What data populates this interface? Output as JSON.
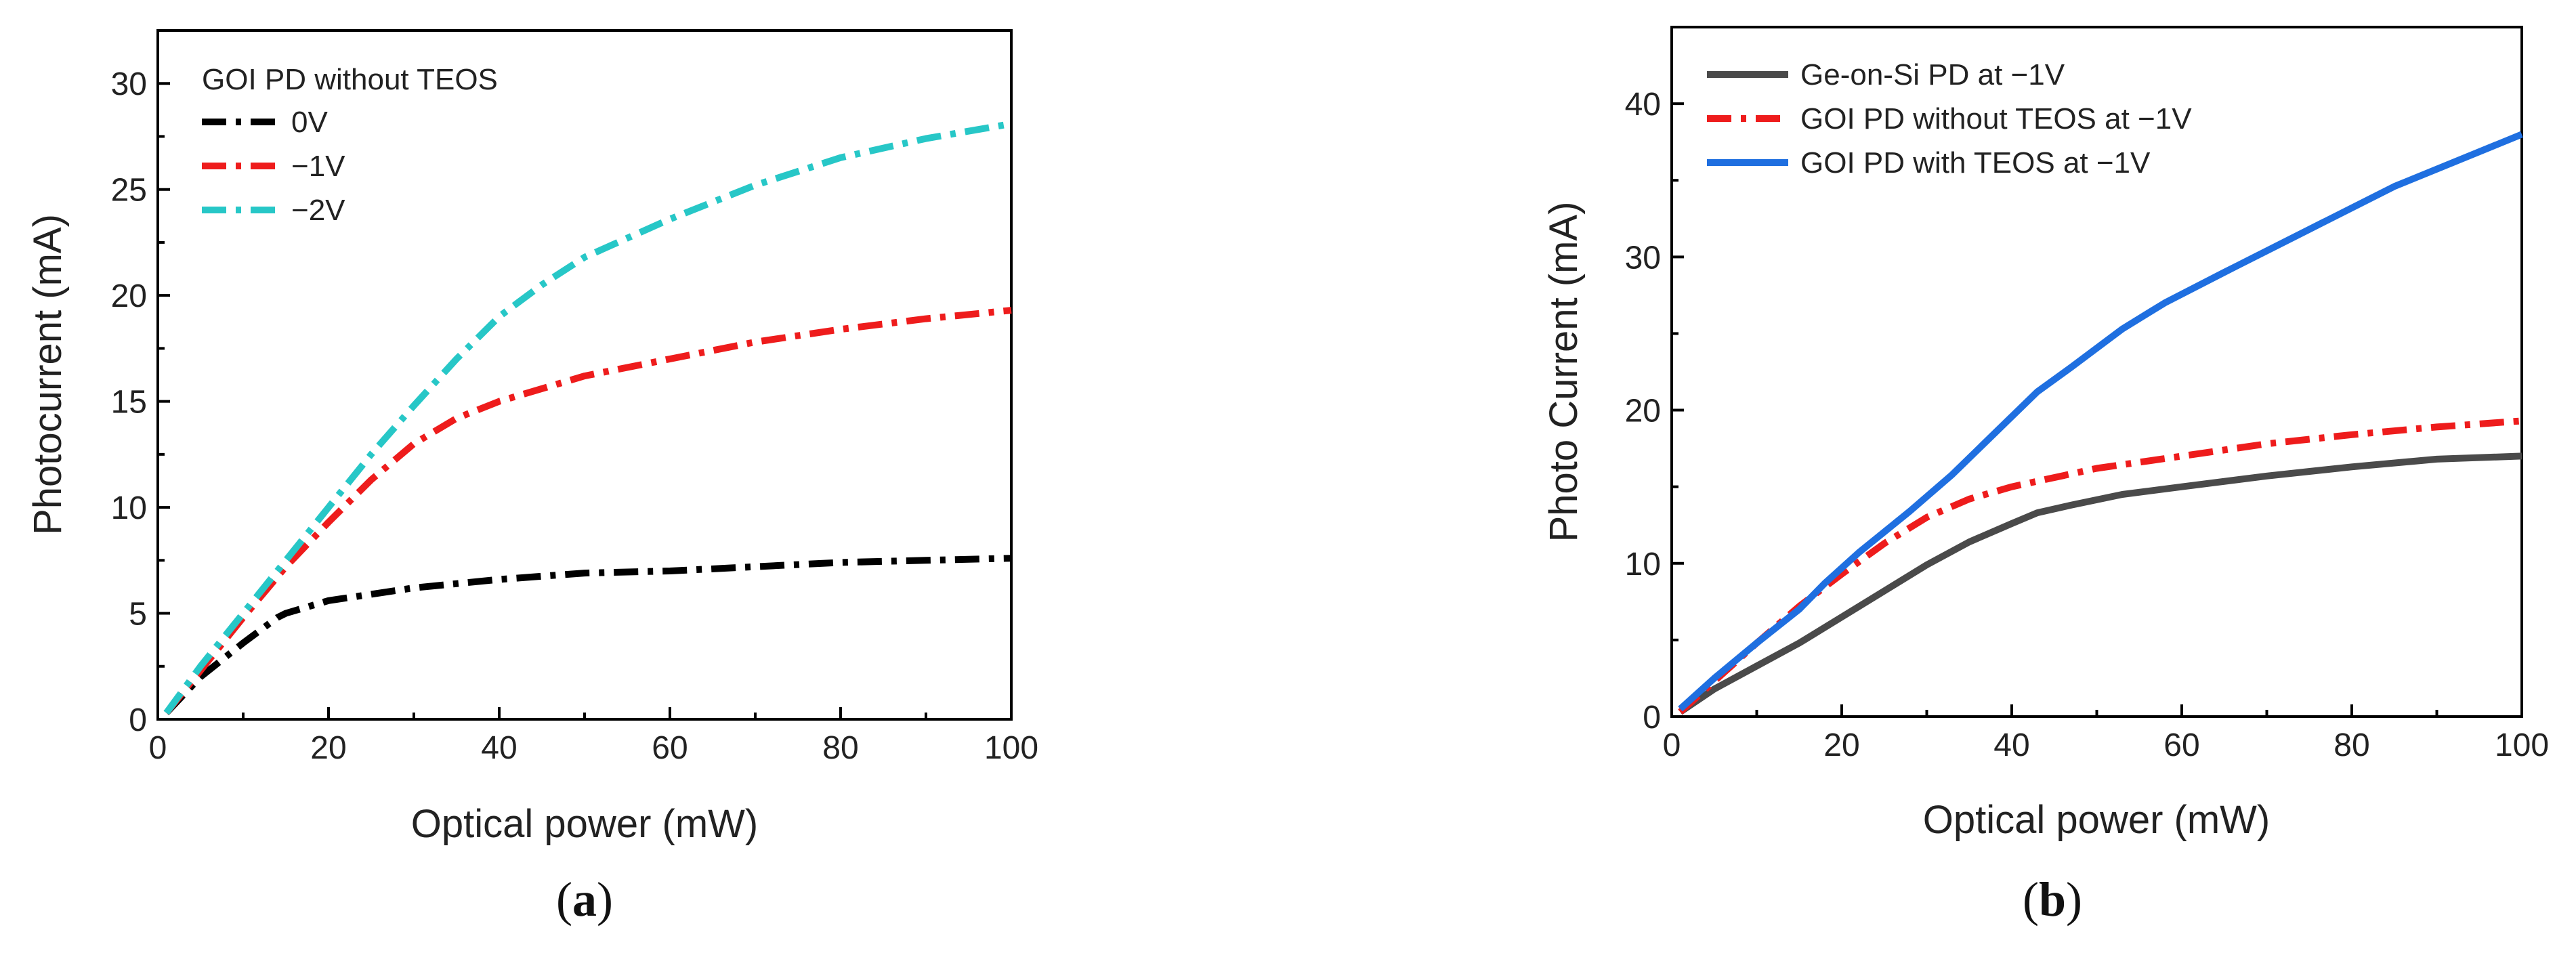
{
  "chart_data": [
    {
      "id": "a",
      "type": "line",
      "panel_label": "a",
      "xlabel": "Optical power (mW)",
      "ylabel": "Photocurrent (mA)",
      "xlim": [
        0,
        100
      ],
      "ylim": [
        0,
        32.5
      ],
      "xticks": [
        0,
        20,
        40,
        60,
        80,
        100
      ],
      "yticks": [
        0,
        5,
        10,
        15,
        20,
        25,
        30
      ],
      "legend_title": "GOI PD without TEOS",
      "series": [
        {
          "name": "0V",
          "color": "#000000",
          "dash": "dashdot",
          "x": [
            1,
            5,
            10,
            14,
            15,
            20,
            30,
            40,
            50,
            60,
            70,
            80,
            90,
            100
          ],
          "y": [
            0.3,
            2.0,
            3.6,
            4.8,
            5.0,
            5.6,
            6.2,
            6.6,
            6.9,
            7.0,
            7.2,
            7.4,
            7.5,
            7.6
          ]
        },
        {
          "name": "−1V",
          "color": "#ee1c1c",
          "dash": "dashdot",
          "x": [
            1,
            5,
            10,
            15,
            20,
            25,
            30,
            35,
            40,
            50,
            60,
            70,
            80,
            90,
            100
          ],
          "y": [
            0.3,
            2.3,
            4.8,
            7.2,
            9.3,
            11.3,
            13.0,
            14.2,
            15.0,
            16.2,
            17.0,
            17.8,
            18.4,
            18.9,
            19.3
          ]
        },
        {
          "name": "−2V",
          "color": "#27c7c7",
          "dash": "dashdot",
          "x": [
            1,
            5,
            10,
            15,
            20,
            25,
            30,
            35,
            40,
            45,
            50,
            60,
            70,
            80,
            90,
            100
          ],
          "y": [
            0.3,
            2.5,
            5.0,
            7.5,
            10.0,
            12.5,
            14.8,
            17.0,
            19.0,
            20.5,
            21.8,
            23.6,
            25.2,
            26.5,
            27.4,
            28.1
          ]
        }
      ]
    },
    {
      "id": "b",
      "type": "line",
      "panel_label": "b",
      "xlabel": "Optical power (mW)",
      "ylabel": "Photo Current (mA)",
      "xlim": [
        0,
        100
      ],
      "ylim": [
        0,
        45
      ],
      "xticks": [
        0,
        20,
        40,
        60,
        80,
        100
      ],
      "yticks": [
        0,
        10,
        20,
        30,
        40
      ],
      "series": [
        {
          "name": "Ge-on-Si PD at −1V",
          "color": "#4a4a4a",
          "dash": "solid",
          "x": [
            1,
            5,
            10,
            15,
            20,
            25,
            30,
            35,
            40,
            43,
            47,
            53,
            60,
            70,
            80,
            90,
            100
          ],
          "y": [
            0.3,
            1.8,
            3.3,
            4.8,
            6.5,
            8.2,
            9.9,
            11.4,
            12.6,
            13.3,
            13.8,
            14.5,
            15.0,
            15.7,
            16.3,
            16.8,
            17.0
          ]
        },
        {
          "name": "GOI PD without TEOS at −1V",
          "color": "#ee1c1c",
          "dash": "dashdot",
          "x": [
            1,
            5,
            10,
            15,
            20,
            25,
            30,
            35,
            40,
            50,
            60,
            70,
            80,
            90,
            100
          ],
          "y": [
            0.3,
            2.3,
            4.8,
            7.2,
            9.3,
            11.3,
            13.0,
            14.2,
            15.0,
            16.2,
            17.0,
            17.8,
            18.4,
            18.9,
            19.3
          ]
        },
        {
          "name": "GOI PD with TEOS at −1V",
          "color": "#1f6fe0",
          "dash": "solid",
          "x": [
            1,
            5,
            10,
            15,
            18,
            22,
            28,
            33,
            38,
            43,
            47,
            53,
            58,
            65,
            75,
            85,
            100
          ],
          "y": [
            0.5,
            2.5,
            4.8,
            7.0,
            8.7,
            10.7,
            13.4,
            15.8,
            18.5,
            21.2,
            22.8,
            25.3,
            27.0,
            29.0,
            31.8,
            34.6,
            38.0
          ]
        }
      ]
    }
  ]
}
